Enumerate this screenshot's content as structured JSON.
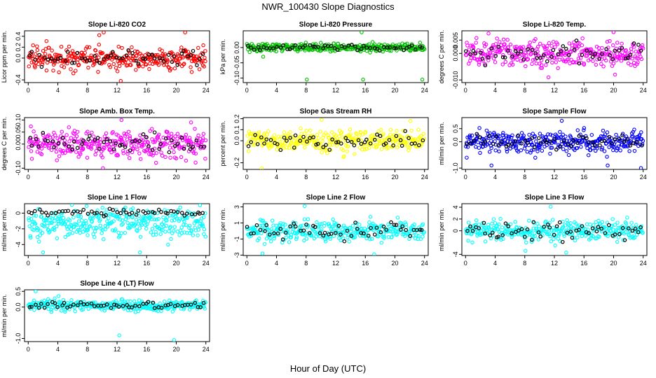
{
  "figure": {
    "title": "NWR_100430  Slope Diagnostics",
    "xlabel": "Hour of Day (UTC)"
  },
  "chart_data": [
    {
      "type": "scatter",
      "title": "Slope Li-820 CO2",
      "ylabel": "Licor ppm per min.",
      "color": "#ff0000",
      "xlim": [
        -0.5,
        24.5
      ],
      "xticks": [
        0,
        4,
        8,
        12,
        16,
        20,
        24
      ],
      "ylim": [
        -0.45,
        0.5
      ],
      "yticks": [
        -0.4,
        0.0,
        0.2,
        0.4
      ],
      "ytick_labels": [
        "-0.4",
        "0.0",
        "0.2",
        "0.4"
      ],
      "spread": 0.15,
      "outliers": [
        [
          9.6,
          0.42
        ],
        [
          10.2,
          0.47
        ],
        [
          21.2,
          0.47
        ],
        [
          12.5,
          -0.42
        ],
        [
          6.1,
          -0.28
        ]
      ],
      "black_spread": 0.1
    },
    {
      "type": "scatter",
      "title": "Slope Li-820 Pressure",
      "ylabel": "kPa per min.",
      "color": "#00c000",
      "xlim": [
        -0.5,
        24.5
      ],
      "xticks": [
        0,
        4,
        8,
        12,
        16,
        20,
        24
      ],
      "ylim": [
        -0.115,
        0.055
      ],
      "yticks": [
        -0.1,
        -0.05,
        0.0
      ],
      "ytick_labels": [
        "-0.10",
        "-0.05",
        "0.00"
      ],
      "spread": 0.01,
      "outliers": [
        [
          15.5,
          0.05
        ],
        [
          8.1,
          -0.105
        ],
        [
          15.7,
          -0.105
        ],
        [
          23.7,
          -0.105
        ],
        [
          2.2,
          -0.03
        ]
      ],
      "black_spread": 0.006
    },
    {
      "type": "scatter",
      "title": "Slope Li-820 Temp.",
      "ylabel": "degrees C per min.",
      "color": "#ff00ff",
      "xlim": [
        -0.5,
        24.5
      ],
      "xticks": [
        0,
        4,
        8,
        12,
        16,
        20,
        24
      ],
      "ylim": [
        -0.011,
        0.0085
      ],
      "yticks": [
        -0.01,
        0.0,
        0.005
      ],
      "ytick_labels": [
        "-0.010",
        "0.000",
        "0.005"
      ],
      "spread": 0.0035,
      "outliers": [
        [
          3.1,
          0.0075
        ],
        [
          11.2,
          -0.009
        ],
        [
          20.2,
          -0.008
        ],
        [
          20.0,
          0.008
        ]
      ],
      "black_spread": 0.0025
    },
    {
      "type": "scatter",
      "title": "Slope Amb. Box Temp.",
      "ylabel": "degrees C per min.",
      "color": "#ff00ff",
      "xlim": [
        -0.5,
        24.5
      ],
      "xticks": [
        0,
        4,
        8,
        12,
        16,
        20,
        24
      ],
      "ylim": [
        -0.105,
        0.11
      ],
      "yticks": [
        -0.1,
        0.0,
        0.05,
        0.1
      ],
      "ytick_labels": [
        "-0.10",
        "0.00",
        "0.05",
        "0.10"
      ],
      "spread": 0.04,
      "outliers": [
        [
          10.1,
          -0.1
        ],
        [
          12.6,
          0.1
        ],
        [
          22.0,
          0.09
        ]
      ],
      "black_spread": 0.03
    },
    {
      "type": "scatter",
      "title": "Slope Gas Stream RH",
      "ylabel": "percent per min.",
      "color": "#ffff00",
      "xlim": [
        -0.5,
        24.5
      ],
      "xticks": [
        0,
        4,
        8,
        12,
        16,
        20,
        24
      ],
      "ylim": [
        -0.26,
        0.21
      ],
      "yticks": [
        -0.2,
        0.0,
        0.1,
        0.2
      ],
      "ytick_labels": [
        "-0.2",
        "0.0",
        "0.1",
        "0.2"
      ],
      "spread": 0.07,
      "outliers": [
        [
          2.0,
          -0.25
        ],
        [
          10.1,
          0.19
        ],
        [
          22.1,
          0.18
        ]
      ],
      "black_spread": 0.05
    },
    {
      "type": "scatter",
      "title": "Slope Sample Flow",
      "ylabel": "ml/min per min.",
      "color": "#0000ff",
      "xlim": [
        -0.5,
        24.5
      ],
      "xticks": [
        0,
        4,
        8,
        12,
        16,
        20,
        24
      ],
      "ylim": [
        -1.05,
        0.92
      ],
      "yticks": [
        -1.0,
        0.0,
        0.5
      ],
      "ytick_labels": [
        "-1.0",
        "0.0",
        "0.5"
      ],
      "spread": 0.3,
      "outliers": [
        [
          23.7,
          -1.0
        ],
        [
          19.2,
          -0.9
        ],
        [
          13.0,
          0.8
        ],
        [
          3.5,
          -0.9
        ]
      ],
      "black_spread": 0.2
    },
    {
      "type": "scatter",
      "title": "Slope Line 1 Flow",
      "ylabel": "ml/min per min.",
      "color": "#00ffff",
      "xlim": [
        -0.5,
        24.5
      ],
      "xticks": [
        0,
        4,
        8,
        12,
        16,
        20,
        24
      ],
      "ylim": [
        -5.4,
        1.2
      ],
      "yticks": [
        -4,
        -2,
        0
      ],
      "ytick_labels": [
        "-4",
        "-2",
        "0"
      ],
      "spread": 1.4,
      "center": -1.3,
      "outliers": [
        [
          7.9,
          0.9
        ],
        [
          2.0,
          -5.0
        ],
        [
          15.1,
          -5.0
        ]
      ],
      "black_spread": 0.3,
      "black_center": 0.1
    },
    {
      "type": "scatter",
      "title": "Slope Line 2 Flow",
      "ylabel": "ml/min per min.",
      "color": "#00ffff",
      "xlim": [
        -0.5,
        24.5
      ],
      "xticks": [
        0,
        4,
        8,
        12,
        16,
        20,
        24
      ],
      "ylim": [
        -3.05,
        3.4
      ],
      "yticks": [
        -3,
        -1,
        1,
        3
      ],
      "ytick_labels": [
        "-3",
        "-1",
        "1",
        "3"
      ],
      "spread": 0.9,
      "outliers": [
        [
          7.8,
          3.1
        ],
        [
          17.2,
          -2.9
        ],
        [
          2.1,
          -2.8
        ]
      ],
      "black_spread": 0.8
    },
    {
      "type": "scatter",
      "title": "Slope Line 3 Flow",
      "ylabel": "ml/min per min.",
      "color": "#00ffff",
      "xlim": [
        -0.5,
        24.5
      ],
      "xticks": [
        0,
        4,
        8,
        12,
        16,
        20,
        24
      ],
      "ylim": [
        -4.2,
        4.6
      ],
      "yticks": [
        -4,
        0,
        2,
        4
      ],
      "ytick_labels": [
        "-4",
        "0",
        "2",
        "4"
      ],
      "spread": 1.2,
      "outliers": [
        [
          11.5,
          4.1
        ],
        [
          13.6,
          -3.7
        ],
        [
          8.1,
          -3.4
        ]
      ],
      "black_spread": 1.0
    },
    {
      "type": "scatter",
      "title": "Slope Line 4 (LT) Flow",
      "ylabel": "ml/min per min.",
      "color": "#00ffff",
      "xlim": [
        -0.5,
        24.5
      ],
      "xticks": [
        0,
        4,
        8,
        12,
        16,
        20,
        24
      ],
      "ylim": [
        -1.1,
        0.55
      ],
      "yticks": [
        -1.0,
        0.0,
        0.5
      ],
      "ytick_labels": [
        "-1.0",
        "0.0",
        "0.5"
      ],
      "spread": 0.12,
      "center": 0.05,
      "outliers": [
        [
          12.3,
          -0.9
        ],
        [
          19.7,
          -1.05
        ],
        [
          1.0,
          0.5
        ],
        [
          4.1,
          0.35
        ]
      ],
      "black_spread": 0.08,
      "black_center": 0.05
    }
  ]
}
